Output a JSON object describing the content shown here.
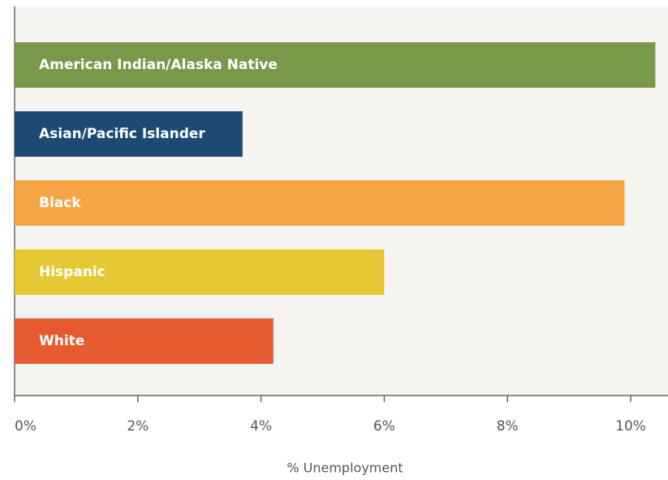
{
  "chart_data": {
    "type": "barh",
    "categories": [
      "American Indian/Alaska Native",
      "Asian/Pacific Islander",
      "Black",
      "Hispanic",
      "White"
    ],
    "values": [
      10.4,
      3.7,
      9.9,
      6.0,
      4.2
    ],
    "colors": [
      "#7a984a",
      "#1d4a72",
      "#f4a645",
      "#e6c834",
      "#e65a30"
    ],
    "xlim": [
      0,
      10.5
    ],
    "xticks": [
      {
        "value": 0,
        "label": "0%"
      },
      {
        "value": 2,
        "label": "2%"
      },
      {
        "value": 4,
        "label": "4%"
      },
      {
        "value": 6,
        "label": "6%"
      },
      {
        "value": 8,
        "label": "8%"
      },
      {
        "value": 10,
        "label": "10%"
      }
    ],
    "xlabel": "% Unemployment"
  }
}
